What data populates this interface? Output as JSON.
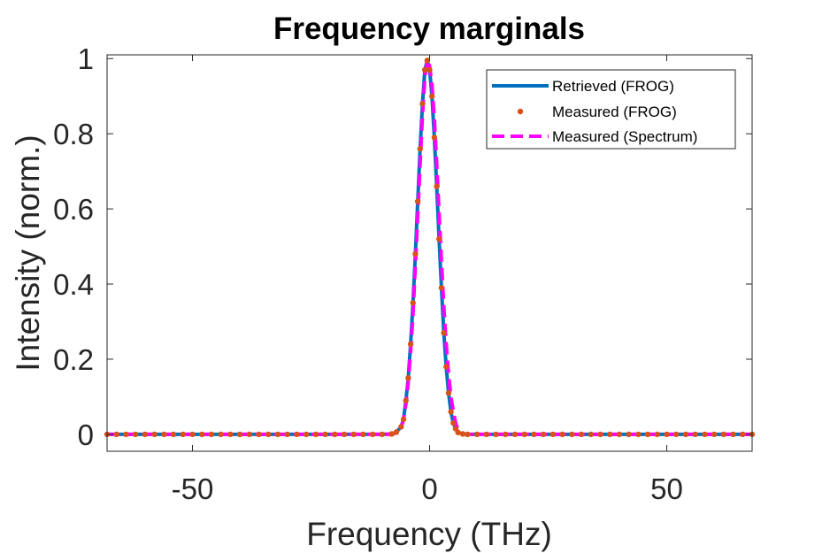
{
  "chart_data": {
    "type": "line",
    "title": "Frequency marginals",
    "xlabel": "Frequency (THz)",
    "ylabel": "Intensity (norm.)",
    "xlim": [
      -68,
      68
    ],
    "ylim": [
      -0.045,
      1.01
    ],
    "xticks": [
      -50,
      0,
      50
    ],
    "xtick_labels": [
      "-50",
      "0",
      "50"
    ],
    "yticks": [
      0,
      0.2,
      0.4,
      0.6,
      0.8,
      1
    ],
    "ytick_labels": [
      "0",
      "0.2",
      "0.4",
      "0.6",
      "0.8",
      "1"
    ],
    "grid": false,
    "legend_position": "top-right",
    "series": [
      {
        "name": "Retrieved (FROG)",
        "style": "solid",
        "color": "#0072BD",
        "x": [
          -68,
          -10,
          -8,
          -7,
          -6,
          -5.5,
          -5,
          -4.5,
          -4,
          -3.5,
          -3,
          -2.5,
          -2,
          -1.5,
          -1,
          -0.5,
          0,
          0.5,
          1,
          1.5,
          2,
          2.5,
          3,
          3.5,
          4,
          4.5,
          5,
          5.5,
          6,
          7,
          8,
          68
        ],
        "y": [
          0,
          0,
          0.001,
          0.006,
          0.02,
          0.04,
          0.09,
          0.15,
          0.24,
          0.35,
          0.48,
          0.62,
          0.76,
          0.88,
          0.97,
          0.995,
          0.97,
          0.9,
          0.79,
          0.66,
          0.52,
          0.39,
          0.27,
          0.18,
          0.11,
          0.06,
          0.03,
          0.015,
          0.005,
          0.001,
          0,
          0
        ]
      },
      {
        "name": "Measured (FROG)",
        "style": "dotted-markers",
        "color": "#D95319",
        "x": [
          -68,
          -66,
          -64,
          -62,
          -60,
          -58,
          -56,
          -54,
          -52,
          -50,
          -48,
          -46,
          -44,
          -42,
          -40,
          -38,
          -36,
          -34,
          -32,
          -30,
          -28,
          -26,
          -24,
          -22,
          -20,
          -18,
          -16,
          -14,
          -12,
          -10,
          -8,
          -7,
          -6,
          -5.5,
          -5,
          -4.5,
          -4,
          -3.5,
          -3,
          -2.5,
          -2,
          -1.5,
          -1,
          -0.5,
          0,
          0.5,
          1,
          1.5,
          2,
          2.5,
          3,
          3.5,
          4,
          4.5,
          5,
          5.5,
          6,
          7,
          8,
          10,
          12,
          14,
          16,
          18,
          20,
          22,
          24,
          26,
          28,
          30,
          32,
          34,
          36,
          38,
          40,
          42,
          44,
          46,
          48,
          50,
          52,
          54,
          56,
          58,
          60,
          62,
          64,
          66,
          68
        ],
        "y": [
          0,
          0,
          0,
          0,
          0,
          0,
          0,
          0,
          0,
          0,
          0,
          0,
          0,
          0,
          0,
          0,
          0,
          0,
          0,
          0,
          0,
          0,
          0,
          0,
          0,
          0,
          0,
          0,
          0,
          0,
          0.001,
          0.006,
          0.02,
          0.04,
          0.09,
          0.15,
          0.24,
          0.35,
          0.48,
          0.62,
          0.76,
          0.88,
          0.97,
          0.995,
          0.97,
          0.9,
          0.79,
          0.66,
          0.52,
          0.39,
          0.27,
          0.18,
          0.11,
          0.06,
          0.03,
          0.015,
          0.005,
          0.001,
          0,
          0,
          0,
          0,
          0,
          0,
          0,
          0,
          0,
          0,
          0,
          0,
          0,
          0,
          0,
          0,
          0,
          0,
          0,
          0,
          0,
          0,
          0,
          0,
          0,
          0,
          0,
          0,
          0,
          0,
          0
        ]
      },
      {
        "name": "Measured (Spectrum)",
        "style": "dashed",
        "color": "#FF00FF",
        "x": [
          -68,
          -8,
          -7,
          -6,
          -5.5,
          -5,
          -4.5,
          -4,
          -3.5,
          -3,
          -2.5,
          -2,
          -1.5,
          -1,
          -0.5,
          0,
          0.5,
          1,
          1.5,
          2,
          2.5,
          3,
          3.5,
          4,
          4.5,
          5,
          5.5,
          6,
          7,
          8,
          68
        ],
        "y": [
          0,
          0,
          0.004,
          0.018,
          0.04,
          0.08,
          0.14,
          0.22,
          0.32,
          0.45,
          0.58,
          0.72,
          0.85,
          0.95,
          0.995,
          0.98,
          0.93,
          0.84,
          0.72,
          0.59,
          0.46,
          0.34,
          0.24,
          0.16,
          0.1,
          0.06,
          0.03,
          0.012,
          0.002,
          0,
          0
        ]
      }
    ]
  }
}
